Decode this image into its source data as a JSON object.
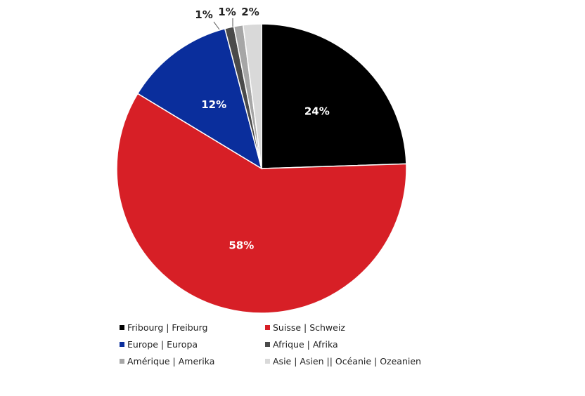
{
  "chart_data": {
    "type": "pie",
    "title": "",
    "categories": [
      "Fribourg | Freiburg",
      "Suisse | Schweiz",
      "Europe | Europa",
      "Afrique | Afrika",
      "Amérique | Amerika",
      "Asie | Asien || Océanie | Ozeanien"
    ],
    "values": [
      24,
      58,
      12,
      1,
      1,
      2
    ],
    "labels": [
      "24%",
      "58%",
      "12%",
      "1%",
      "1%",
      "2%"
    ],
    "colors": [
      "#000000",
      "#d71f26",
      "#0a2e9c",
      "#4a4a4a",
      "#a6a6a6",
      "#d9d9d9"
    ],
    "label_colors": [
      "#ffffff",
      "#ffffff",
      "#ffffff",
      "#222222",
      "#222222",
      "#222222"
    ],
    "legend_position": "bottom",
    "start_angle": "top",
    "direction": "clockwise"
  }
}
